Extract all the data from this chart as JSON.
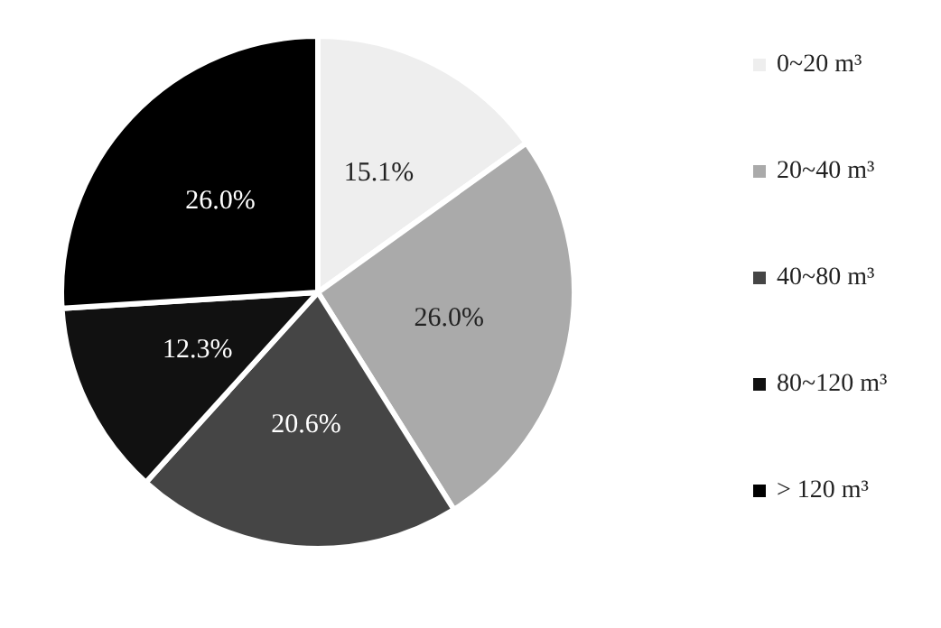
{
  "chart_data": {
    "type": "pie",
    "categories": [
      "0~20 m³",
      "20~40 m³",
      "40~80 m³",
      "80~120 m³",
      "> 120 m³"
    ],
    "values": [
      15.1,
      26.0,
      20.6,
      12.3,
      26.0
    ],
    "value_labels": [
      "15.1%",
      "26.0%",
      "20.6%",
      "12.3%",
      "26.0%"
    ],
    "colors": [
      "#eeeeee",
      "#aaaaaa",
      "#454545",
      "#111111",
      "#000000"
    ],
    "legend": "right"
  }
}
